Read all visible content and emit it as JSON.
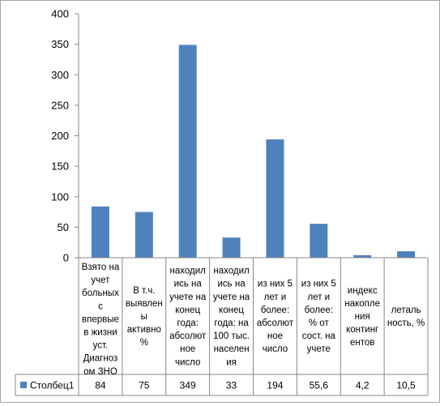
{
  "chart_data": {
    "type": "bar",
    "categories": [
      "Взято на учет больных с впервые в жизни уст. Диагноз ом ЗНО",
      "В т.ч. выявлен ы активно %",
      "находил ись на учете на конец года: абсолют ное число",
      "находил ись на учете на конец года: на 100 тыс. населен ия",
      "из них 5 лет и более: абсолют ное число",
      "из них 5 лет и более: % от сост. на учете",
      "индекс накопле ния континг ентов",
      "леталь ность, %"
    ],
    "category_lines": [
      [
        "Взято на",
        "учет",
        "больных",
        "с",
        "впервые",
        "в жизни",
        "уст.",
        "Диагноз",
        "ом ЗНО"
      ],
      [
        "В т.ч.",
        "выявлен",
        "ы",
        "активно",
        "%"
      ],
      [
        "находил",
        "ись на",
        "учете на",
        "конец",
        "года:",
        "абсолют",
        "ное",
        "число"
      ],
      [
        "находил",
        "ись на",
        "учете на",
        "конец",
        "года: на",
        "100 тыс.",
        "населен",
        "ия"
      ],
      [
        "из них 5",
        "лет и",
        "более:",
        "абсолют",
        "ное",
        "число"
      ],
      [
        "из них 5",
        "лет и",
        "более:",
        "% от",
        "сост. на",
        "учете"
      ],
      [
        "индекс",
        "накопле",
        "ния",
        "континг",
        "ентов"
      ],
      [
        "леталь",
        "ность, %"
      ]
    ],
    "series": [
      {
        "name": "Столбец1",
        "values": [
          84,
          75,
          349,
          33,
          194,
          55.6,
          4.2,
          10.5
        ],
        "labels": [
          "84",
          "75",
          "349",
          "33",
          "194",
          "55,6",
          "4,2",
          "10,5"
        ],
        "color": "#4f81bd"
      }
    ],
    "ylim": [
      0,
      400
    ],
    "yticks": [
      "0",
      "50",
      "100",
      "150",
      "200",
      "250",
      "300",
      "350",
      "400"
    ],
    "grid": false,
    "legend": "data-table",
    "title": "",
    "xlabel": "",
    "ylabel": ""
  }
}
